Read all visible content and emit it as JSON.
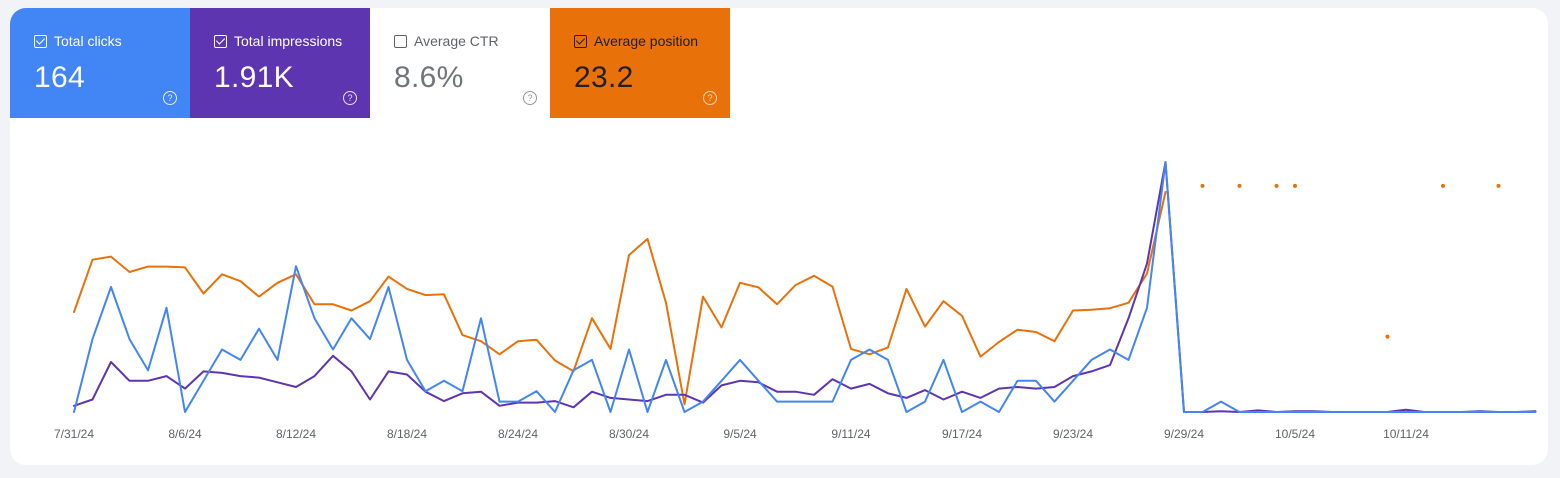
{
  "metrics": [
    {
      "label": "Total clicks",
      "value": "164",
      "checked": true,
      "color": "#4285f4"
    },
    {
      "label": "Total impressions",
      "value": "1.91K",
      "checked": true,
      "color": "#5e35b1"
    },
    {
      "label": "Average CTR",
      "value": "8.6%",
      "checked": false,
      "color": "#ffffff"
    },
    {
      "label": "Average position",
      "value": "23.2",
      "checked": true,
      "color": "#e8710a"
    }
  ],
  "help_glyph": "?",
  "chart_data": {
    "type": "line",
    "x_start": "2024-07-31",
    "x_tick_labels": [
      "7/31/24",
      "8/6/24",
      "8/12/24",
      "8/18/24",
      "8/24/24",
      "8/30/24",
      "9/5/24",
      "9/11/24",
      "9/17/24",
      "9/23/24",
      "9/29/24",
      "10/5/24",
      "10/11/24"
    ],
    "grid": false,
    "legend": "metric cards (top-left)",
    "series": [
      {
        "name": "Average position",
        "color": "#e8710a",
        "axis": "inverted",
        "values": [
          28.0,
          21.2,
          20.8,
          22.8,
          22.1,
          22.1,
          22.2,
          25.6,
          23.1,
          24.0,
          26.0,
          24.2,
          23.1,
          27.0,
          27.0,
          27.8,
          26.6,
          23.4,
          25.0,
          25.8,
          25.7,
          31.0,
          31.8,
          33.5,
          31.8,
          31.6,
          34.3,
          35.7,
          28.8,
          32.8,
          20.6,
          18.5,
          26.8,
          40.0,
          26.0,
          30.0,
          24.2,
          24.8,
          27.0,
          24.5,
          23.3,
          24.7,
          32.8,
          33.5,
          32.6,
          25.0,
          29.9,
          26.6,
          28.5,
          33.8,
          31.9,
          30.3,
          30.6,
          31.8,
          27.8,
          27.7,
          27.5,
          26.8,
          23.0,
          12.4,
          null,
          null,
          null,
          null,
          null,
          null,
          null,
          null,
          null,
          null,
          null,
          null,
          null,
          null,
          null,
          null,
          null,
          null,
          null,
          null,
          null,
          null,
          null,
          null
        ],
        "isolated_points": [
          {
            "index": 61,
            "value": 11.6
          },
          {
            "index": 63,
            "value": 11.6
          },
          {
            "index": 65,
            "value": 11.6
          },
          {
            "index": 66,
            "value": 11.6
          },
          {
            "index": 71,
            "value": 31.2
          },
          {
            "index": 74,
            "value": 11.6
          },
          {
            "index": 77,
            "value": 11.6
          }
        ]
      },
      {
        "name": "Total impressions",
        "color": "#5e35b1",
        "values": [
          4,
          8,
          32,
          20,
          20,
          23,
          15,
          26,
          25,
          23,
          22,
          19,
          16,
          23,
          36,
          26,
          8,
          26,
          24,
          13,
          7,
          12,
          13,
          4,
          6,
          6,
          7,
          3,
          13,
          9,
          8,
          7,
          11,
          11,
          6,
          17,
          20,
          19,
          13,
          13,
          11,
          21,
          15,
          18,
          12,
          9,
          14,
          8,
          13,
          9,
          15,
          16,
          15,
          16,
          23,
          26,
          30,
          60,
          95,
          160,
          0,
          0,
          0.5,
          0,
          1,
          0,
          0.5,
          0.5,
          0,
          0,
          0,
          0,
          1.5,
          0,
          0,
          0,
          0.5,
          0,
          0,
          0.5
        ],
        "max": 160
      },
      {
        "name": "Total clicks",
        "color": "#4285f4",
        "values": [
          0,
          7,
          12,
          7,
          4,
          10,
          0,
          3,
          6,
          5,
          8,
          5,
          14,
          9,
          6,
          9,
          7,
          12,
          5,
          2,
          3,
          2,
          9,
          1,
          1,
          2,
          0,
          4,
          5,
          0,
          6,
          0,
          5,
          0,
          1,
          3,
          5,
          3,
          1,
          1,
          1,
          1,
          5,
          6,
          5,
          0,
          1,
          5,
          0,
          1,
          0,
          3,
          3,
          1,
          3,
          5,
          6,
          5,
          10,
          24,
          0,
          0,
          1,
          0,
          0,
          0,
          0,
          0,
          0,
          0,
          0,
          0,
          0,
          0,
          0,
          0,
          0,
          0,
          0,
          0
        ],
        "max": 24
      }
    ]
  }
}
